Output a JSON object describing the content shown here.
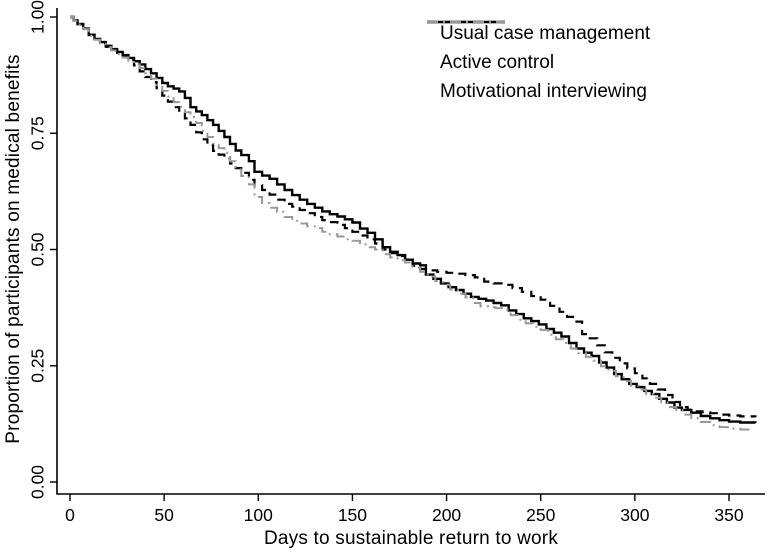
{
  "chart_data": {
    "type": "line",
    "subtype": "kaplan-meier-step",
    "title": "",
    "xlabel": "Days to sustainable return to work",
    "ylabel": "Proportion of participants on medical benefits",
    "xlim": [
      0,
      365
    ],
    "ylim": [
      0,
      1
    ],
    "x_ticks": [
      0,
      50,
      100,
      150,
      200,
      250,
      300,
      350
    ],
    "x_tick_labels": [
      "0",
      "50",
      "100",
      "150",
      "200",
      "250",
      "300",
      "350"
    ],
    "y_ticks": [
      0,
      0.25,
      0.5,
      0.75,
      1
    ],
    "y_tick_labels": [
      "0.00",
      "0.25",
      "0.50",
      "0.75",
      "1.00"
    ],
    "grid": false,
    "legend_position": "top-right-inside",
    "background": "#ffffff",
    "text_color": "#000000",
    "series": [
      {
        "name": "Usual case management",
        "color": "#000000",
        "line_style": "solid",
        "points": [
          [
            0,
            1.0
          ],
          [
            2,
            0.993
          ],
          [
            4,
            0.985
          ],
          [
            7,
            0.975
          ],
          [
            10,
            0.962
          ],
          [
            13,
            0.953
          ],
          [
            16,
            0.946
          ],
          [
            19,
            0.938
          ],
          [
            22,
            0.931
          ],
          [
            25,
            0.925
          ],
          [
            28,
            0.918
          ],
          [
            31,
            0.912
          ],
          [
            34,
            0.905
          ],
          [
            37,
            0.898
          ],
          [
            40,
            0.888
          ],
          [
            43,
            0.879
          ],
          [
            46,
            0.869
          ],
          [
            49,
            0.858
          ],
          [
            52,
            0.851
          ],
          [
            55,
            0.846
          ],
          [
            58,
            0.84
          ],
          [
            61,
            0.826
          ],
          [
            64,
            0.806
          ],
          [
            67,
            0.797
          ],
          [
            70,
            0.789
          ],
          [
            73,
            0.778
          ],
          [
            76,
            0.768
          ],
          [
            79,
            0.755
          ],
          [
            82,
            0.742
          ],
          [
            85,
            0.727
          ],
          [
            88,
            0.713
          ],
          [
            91,
            0.703
          ],
          [
            95,
            0.69
          ],
          [
            98,
            0.667
          ],
          [
            102,
            0.659
          ],
          [
            106,
            0.652
          ],
          [
            110,
            0.64
          ],
          [
            114,
            0.628
          ],
          [
            118,
            0.617
          ],
          [
            122,
            0.607
          ],
          [
            126,
            0.598
          ],
          [
            130,
            0.59
          ],
          [
            134,
            0.582
          ],
          [
            138,
            0.576
          ],
          [
            142,
            0.571
          ],
          [
            146,
            0.565
          ],
          [
            150,
            0.558
          ],
          [
            154,
            0.545
          ],
          [
            158,
            0.536
          ],
          [
            162,
            0.522
          ],
          [
            166,
            0.505
          ],
          [
            170,
            0.495
          ],
          [
            174,
            0.488
          ],
          [
            178,
            0.478
          ],
          [
            182,
            0.47
          ],
          [
            186,
            0.466
          ],
          [
            189,
            0.446
          ],
          [
            193,
            0.437
          ],
          [
            197,
            0.427
          ],
          [
            201,
            0.419
          ],
          [
            205,
            0.413
          ],
          [
            209,
            0.405
          ],
          [
            213,
            0.398
          ],
          [
            217,
            0.394
          ],
          [
            221,
            0.39
          ],
          [
            225,
            0.385
          ],
          [
            229,
            0.38
          ],
          [
            233,
            0.369
          ],
          [
            237,
            0.361
          ],
          [
            241,
            0.352
          ],
          [
            245,
            0.346
          ],
          [
            249,
            0.339
          ],
          [
            253,
            0.329
          ],
          [
            257,
            0.321
          ],
          [
            261,
            0.313
          ],
          [
            265,
            0.299
          ],
          [
            269,
            0.287
          ],
          [
            273,
            0.278
          ],
          [
            277,
            0.271
          ],
          [
            281,
            0.257
          ],
          [
            285,
            0.246
          ],
          [
            289,
            0.232
          ],
          [
            293,
            0.221
          ],
          [
            297,
            0.211
          ],
          [
            301,
            0.204
          ],
          [
            305,
            0.196
          ],
          [
            309,
            0.189
          ],
          [
            313,
            0.179
          ],
          [
            317,
            0.171
          ],
          [
            321,
            0.16
          ],
          [
            325,
            0.155
          ],
          [
            330,
            0.149
          ],
          [
            335,
            0.142
          ],
          [
            340,
            0.137
          ],
          [
            345,
            0.133
          ],
          [
            350,
            0.13
          ],
          [
            356,
            0.128
          ],
          [
            364,
            0.127
          ]
        ]
      },
      {
        "name": "Active control",
        "color": "#000000",
        "line_style": "dashed",
        "points": [
          [
            0,
            1.0
          ],
          [
            2,
            0.992
          ],
          [
            4,
            0.984
          ],
          [
            7,
            0.974
          ],
          [
            10,
            0.961
          ],
          [
            13,
            0.952
          ],
          [
            16,
            0.944
          ],
          [
            19,
            0.936
          ],
          [
            22,
            0.93
          ],
          [
            25,
            0.923
          ],
          [
            28,
            0.916
          ],
          [
            31,
            0.908
          ],
          [
            34,
            0.896
          ],
          [
            37,
            0.883
          ],
          [
            40,
            0.871
          ],
          [
            43,
            0.86
          ],
          [
            46,
            0.847
          ],
          [
            49,
            0.831
          ],
          [
            52,
            0.818
          ],
          [
            55,
            0.806
          ],
          [
            58,
            0.795
          ],
          [
            61,
            0.782
          ],
          [
            64,
            0.768
          ],
          [
            67,
            0.752
          ],
          [
            70,
            0.737
          ],
          [
            73,
            0.724
          ],
          [
            76,
            0.712
          ],
          [
            79,
            0.704
          ],
          [
            82,
            0.696
          ],
          [
            85,
            0.685
          ],
          [
            88,
            0.675
          ],
          [
            91,
            0.665
          ],
          [
            95,
            0.65
          ],
          [
            98,
            0.638
          ],
          [
            102,
            0.628
          ],
          [
            106,
            0.618
          ],
          [
            110,
            0.607
          ],
          [
            114,
            0.598
          ],
          [
            118,
            0.592
          ],
          [
            122,
            0.585
          ],
          [
            126,
            0.578
          ],
          [
            130,
            0.57
          ],
          [
            134,
            0.563
          ],
          [
            138,
            0.559
          ],
          [
            142,
            0.553
          ],
          [
            146,
            0.546
          ],
          [
            150,
            0.538
          ],
          [
            154,
            0.53
          ],
          [
            158,
            0.522
          ],
          [
            162,
            0.513
          ],
          [
            166,
            0.5
          ],
          [
            170,
            0.492
          ],
          [
            174,
            0.486
          ],
          [
            178,
            0.478
          ],
          [
            182,
            0.465
          ],
          [
            186,
            0.458
          ],
          [
            190,
            0.455
          ],
          [
            195,
            0.452
          ],
          [
            200,
            0.45
          ],
          [
            205,
            0.448
          ],
          [
            210,
            0.445
          ],
          [
            215,
            0.44
          ],
          [
            220,
            0.431
          ],
          [
            225,
            0.427
          ],
          [
            230,
            0.424
          ],
          [
            235,
            0.417
          ],
          [
            240,
            0.409
          ],
          [
            245,
            0.4
          ],
          [
            250,
            0.392
          ],
          [
            255,
            0.379
          ],
          [
            260,
            0.366
          ],
          [
            264,
            0.355
          ],
          [
            268,
            0.345
          ],
          [
            272,
            0.318
          ],
          [
            276,
            0.309
          ],
          [
            280,
            0.294
          ],
          [
            284,
            0.279
          ],
          [
            288,
            0.267
          ],
          [
            292,
            0.255
          ],
          [
            296,
            0.244
          ],
          [
            300,
            0.234
          ],
          [
            304,
            0.223
          ],
          [
            308,
            0.211
          ],
          [
            312,
            0.199
          ],
          [
            316,
            0.187
          ],
          [
            320,
            0.172
          ],
          [
            324,
            0.161
          ],
          [
            328,
            0.155
          ],
          [
            332,
            0.152
          ],
          [
            336,
            0.15
          ],
          [
            340,
            0.148
          ],
          [
            345,
            0.145
          ],
          [
            350,
            0.143
          ],
          [
            356,
            0.141
          ],
          [
            364,
            0.139
          ]
        ]
      },
      {
        "name": "Motivational interviewing",
        "color": "#989898",
        "line_style": "dash-dot",
        "points": [
          [
            0,
            1.0
          ],
          [
            2,
            0.992
          ],
          [
            4,
            0.984
          ],
          [
            7,
            0.974
          ],
          [
            10,
            0.96
          ],
          [
            13,
            0.951
          ],
          [
            16,
            0.943
          ],
          [
            19,
            0.935
          ],
          [
            22,
            0.928
          ],
          [
            25,
            0.92
          ],
          [
            28,
            0.913
          ],
          [
            31,
            0.906
          ],
          [
            34,
            0.898
          ],
          [
            37,
            0.89
          ],
          [
            40,
            0.879
          ],
          [
            43,
            0.867
          ],
          [
            46,
            0.854
          ],
          [
            49,
            0.841
          ],
          [
            52,
            0.829
          ],
          [
            55,
            0.817
          ],
          [
            58,
            0.807
          ],
          [
            61,
            0.795
          ],
          [
            64,
            0.785
          ],
          [
            67,
            0.772
          ],
          [
            70,
            0.755
          ],
          [
            73,
            0.742
          ],
          [
            76,
            0.728
          ],
          [
            79,
            0.718
          ],
          [
            82,
            0.708
          ],
          [
            85,
            0.69
          ],
          [
            88,
            0.672
          ],
          [
            91,
            0.658
          ],
          [
            95,
            0.64
          ],
          [
            98,
            0.613
          ],
          [
            102,
            0.6
          ],
          [
            106,
            0.59
          ],
          [
            110,
            0.581
          ],
          [
            114,
            0.57
          ],
          [
            118,
            0.562
          ],
          [
            122,
            0.556
          ],
          [
            126,
            0.55
          ],
          [
            130,
            0.546
          ],
          [
            134,
            0.538
          ],
          [
            138,
            0.533
          ],
          [
            142,
            0.528
          ],
          [
            146,
            0.522
          ],
          [
            150,
            0.519
          ],
          [
            154,
            0.511
          ],
          [
            158,
            0.505
          ],
          [
            162,
            0.5
          ],
          [
            166,
            0.49
          ],
          [
            170,
            0.483
          ],
          [
            174,
            0.477
          ],
          [
            178,
            0.472
          ],
          [
            182,
            0.462
          ],
          [
            186,
            0.452
          ],
          [
            190,
            0.442
          ],
          [
            194,
            0.432
          ],
          [
            198,
            0.424
          ],
          [
            202,
            0.414
          ],
          [
            206,
            0.405
          ],
          [
            210,
            0.397
          ],
          [
            214,
            0.385
          ],
          [
            218,
            0.378
          ],
          [
            222,
            0.376
          ],
          [
            226,
            0.374
          ],
          [
            230,
            0.371
          ],
          [
            234,
            0.359
          ],
          [
            238,
            0.349
          ],
          [
            242,
            0.341
          ],
          [
            246,
            0.334
          ],
          [
            250,
            0.327
          ],
          [
            254,
            0.317
          ],
          [
            258,
            0.307
          ],
          [
            262,
            0.299
          ],
          [
            266,
            0.287
          ],
          [
            270,
            0.277
          ],
          [
            274,
            0.269
          ],
          [
            278,
            0.261
          ],
          [
            282,
            0.249
          ],
          [
            286,
            0.239
          ],
          [
            290,
            0.227
          ],
          [
            294,
            0.217
          ],
          [
            298,
            0.207
          ],
          [
            302,
            0.199
          ],
          [
            306,
            0.189
          ],
          [
            310,
            0.181
          ],
          [
            314,
            0.171
          ],
          [
            318,
            0.161
          ],
          [
            322,
            0.154
          ],
          [
            326,
            0.145
          ],
          [
            330,
            0.137
          ],
          [
            335,
            0.129
          ],
          [
            340,
            0.122
          ],
          [
            345,
            0.118
          ],
          [
            350,
            0.115
          ],
          [
            356,
            0.113
          ],
          [
            362,
            0.112
          ]
        ]
      }
    ]
  }
}
